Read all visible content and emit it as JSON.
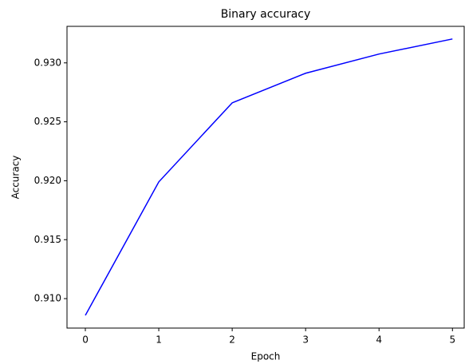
{
  "chart_data": {
    "type": "line",
    "title": "Binary accuracy",
    "x_label": "Epoch",
    "y_label": "Accuracy",
    "x": [
      0,
      1,
      2,
      3,
      4,
      5
    ],
    "series": [
      {
        "name": "Binary accuracy",
        "color": "#0000ff",
        "values": [
          0.90858,
          0.9199,
          0.92661,
          0.92912,
          0.93075,
          0.93203
        ]
      }
    ],
    "xlim": [
      -0.25,
      5.16
    ],
    "xticks": [
      0,
      1,
      2,
      3,
      4,
      5
    ],
    "ylim": [
      0.9075,
      0.9331
    ],
    "yticks": [
      {
        "value": 0.91,
        "label": "0.910"
      },
      {
        "value": 0.915,
        "label": "0.915"
      },
      {
        "value": 0.92,
        "label": "0.920"
      },
      {
        "value": 0.925,
        "label": "0.925"
      },
      {
        "value": 0.93,
        "label": "0.930"
      }
    ],
    "grid": false
  }
}
